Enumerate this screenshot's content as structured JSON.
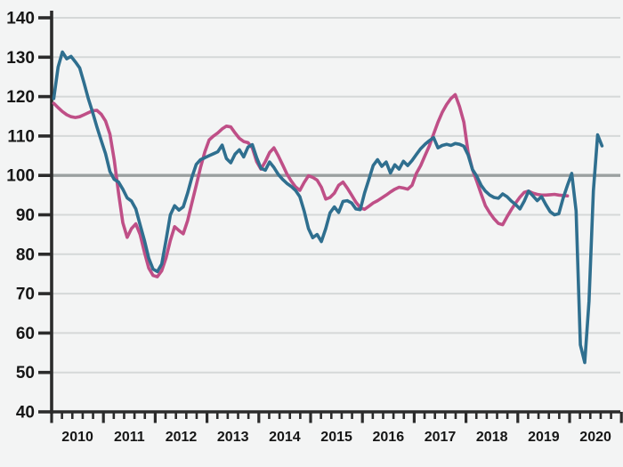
{
  "chart_data": {
    "type": "line",
    "title": "",
    "xlabel": "",
    "ylabel": "",
    "ylim": [
      40,
      140
    ],
    "y_ticks": [
      40,
      50,
      60,
      70,
      80,
      90,
      100,
      110,
      120,
      130,
      140
    ],
    "baseline": 100,
    "grid": true,
    "legend": "none",
    "x_labels": [
      "2010",
      "2011",
      "2012",
      "2013",
      "2014",
      "2015",
      "2016",
      "2017",
      "2018",
      "2019",
      "2020"
    ],
    "x_start_month": "2010-01",
    "minor_ticks_per_year": 4,
    "series": [
      {
        "name": "pink-series",
        "color": "#bf4f87",
        "values": [
          118.3,
          117.2,
          116.2,
          115.4,
          114.9,
          114.7,
          114.9,
          115.4,
          115.9,
          116.4,
          116.5,
          115.5,
          113.8,
          110.5,
          104.0,
          95.5,
          88.0,
          84.3,
          86.5,
          87.7,
          85.0,
          80.5,
          76.5,
          74.6,
          74.3,
          75.8,
          79.0,
          83.5,
          87.0,
          86.0,
          85.2,
          88.5,
          93.0,
          97.5,
          102.0,
          106.0,
          109.0,
          110.0,
          110.8,
          111.8,
          112.5,
          112.3,
          110.8,
          109.4,
          108.6,
          108.3,
          107.0,
          103.5,
          101.6,
          103.5,
          105.8,
          107.0,
          105.0,
          102.7,
          100.4,
          98.6,
          97.1,
          96.2,
          98.2,
          99.9,
          99.5,
          98.8,
          97.0,
          94.0,
          94.4,
          95.5,
          97.5,
          98.3,
          96.8,
          95.0,
          93.2,
          91.8,
          91.4,
          92.2,
          93.0,
          93.6,
          94.3,
          95.0,
          95.8,
          96.5,
          97.0,
          96.8,
          96.5,
          97.5,
          100.5,
          102.5,
          105.0,
          107.5,
          110.5,
          113.5,
          116.0,
          118.0,
          119.5,
          120.5,
          117.5,
          113.5,
          105.8,
          101.5,
          98.5,
          95.3,
          92.3,
          90.5,
          89.0,
          87.8,
          87.5,
          89.5,
          91.3,
          93.0,
          94.5,
          95.7,
          96.0,
          95.5,
          95.2,
          95.0,
          95.0,
          95.1,
          95.2,
          95.0,
          94.9,
          94.8
        ]
      },
      {
        "name": "teal-series",
        "color": "#2f6f8f",
        "values": [
          119.5,
          127.5,
          131.3,
          129.6,
          130.2,
          128.8,
          127.3,
          123.5,
          119.5,
          116.0,
          112.3,
          108.8,
          105.5,
          101.0,
          99.0,
          98.3,
          96.5,
          94.3,
          93.5,
          91.5,
          87.5,
          83.5,
          79.0,
          76.2,
          75.6,
          77.5,
          83.5,
          90.0,
          92.3,
          91.2,
          92.0,
          95.5,
          99.5,
          102.8,
          104.0,
          104.5,
          105.0,
          105.5,
          106.0,
          107.7,
          104.3,
          103.2,
          105.4,
          106.5,
          104.7,
          107.2,
          107.8,
          104.5,
          101.8,
          101.3,
          103.4,
          102.0,
          100.3,
          99.0,
          98.0,
          97.2,
          96.2,
          94.6,
          91.0,
          86.5,
          84.2,
          85.0,
          83.2,
          86.5,
          90.5,
          92.0,
          90.6,
          93.4,
          93.6,
          93.0,
          91.5,
          91.3,
          95.5,
          99.0,
          102.5,
          104.0,
          102.3,
          103.4,
          100.6,
          102.7,
          101.6,
          103.6,
          102.5,
          103.8,
          105.3,
          106.8,
          107.9,
          108.8,
          109.6,
          107.0,
          107.6,
          107.9,
          107.6,
          108.1,
          107.9,
          107.4,
          105.2,
          101.5,
          99.8,
          97.5,
          96.0,
          95.0,
          94.4,
          94.2,
          95.3,
          94.6,
          93.5,
          92.6,
          91.5,
          93.5,
          96.0,
          94.8,
          93.6,
          94.6,
          92.6,
          90.8,
          90.0,
          90.3,
          94.2,
          97.5,
          100.5,
          91.0,
          57.0,
          52.5,
          68.0,
          96.0,
          110.3,
          107.5
        ]
      }
    ],
    "style": {
      "background": "#f3f4f4",
      "gridline_color": "#d5d8d8",
      "baseline_color": "#9aa0a0",
      "axis_color": "#2b2b2b",
      "label_color": "#161616",
      "line_width": 3.6
    }
  }
}
